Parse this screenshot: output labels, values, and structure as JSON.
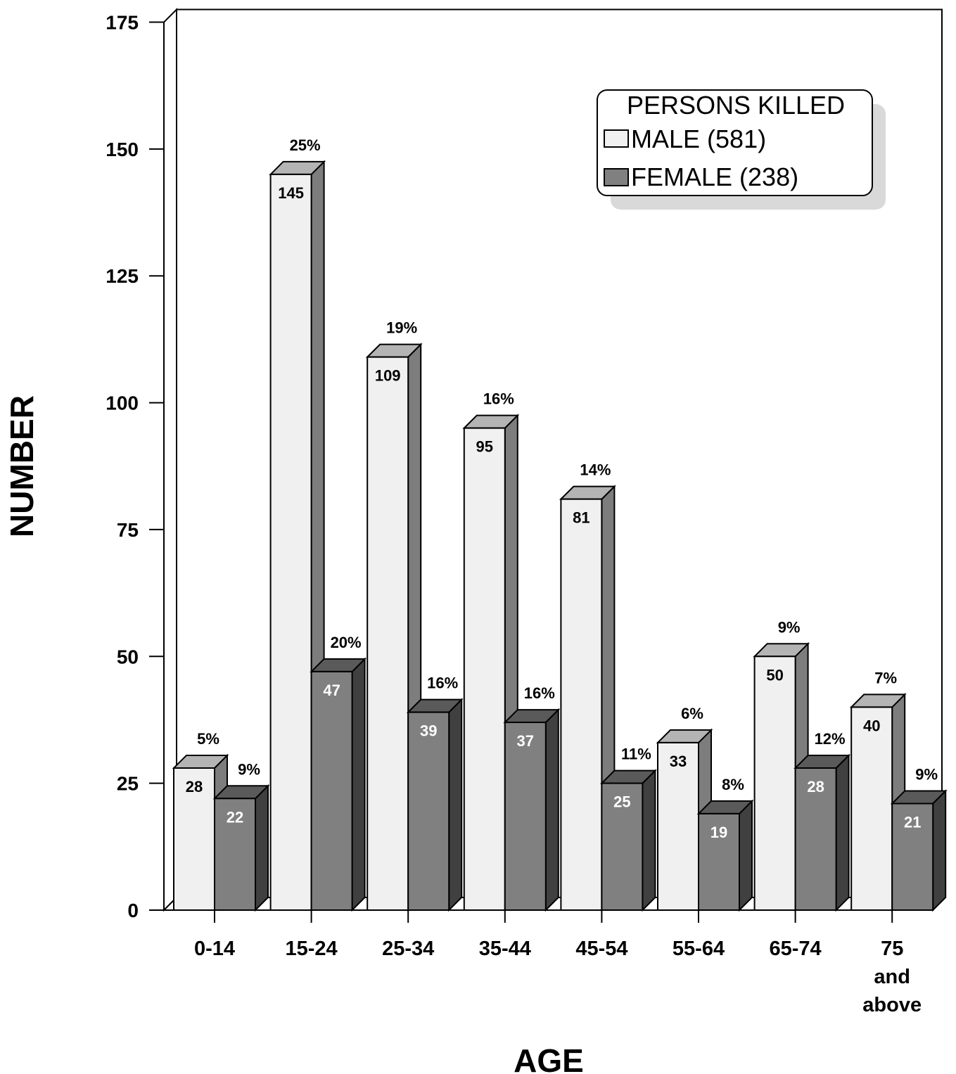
{
  "chart_data": {
    "type": "bar",
    "title": "",
    "xlabel": "AGE",
    "ylabel": "NUMBER",
    "ylim": [
      0,
      175
    ],
    "yticks": [
      0,
      25,
      50,
      75,
      100,
      125,
      150,
      175
    ],
    "categories": [
      [
        "0-14"
      ],
      [
        "15-24"
      ],
      [
        "25-34"
      ],
      [
        "35-44"
      ],
      [
        "45-54"
      ],
      [
        "55-64"
      ],
      [
        "65-74"
      ],
      [
        "75",
        "and",
        "above"
      ]
    ],
    "series": [
      {
        "name": "MALE",
        "legend_label": "MALE  (581)",
        "values": [
          28,
          145,
          109,
          95,
          81,
          33,
          50,
          40
        ],
        "percent_labels": [
          "5%",
          "25%",
          "19%",
          "16%",
          "14%",
          "6%",
          "9%",
          "7%"
        ],
        "colors": {
          "front": "#f0f0f0",
          "top": "#b4b4b4",
          "side": "#7d7d7d",
          "label": "#000000"
        }
      },
      {
        "name": "FEMALE",
        "legend_label": "FEMALE  (238)",
        "values": [
          22,
          47,
          39,
          37,
          25,
          19,
          28,
          21
        ],
        "percent_labels": [
          "9%",
          "20%",
          "16%",
          "16%",
          "11%",
          "8%",
          "12%",
          "9%"
        ],
        "colors": {
          "front": "#808080",
          "top": "#5a5a5a",
          "side": "#404040",
          "label": "#ffffff"
        }
      }
    ],
    "legend": {
      "title": "PERSONS KILLED",
      "position": "top-right"
    },
    "grid": false
  }
}
